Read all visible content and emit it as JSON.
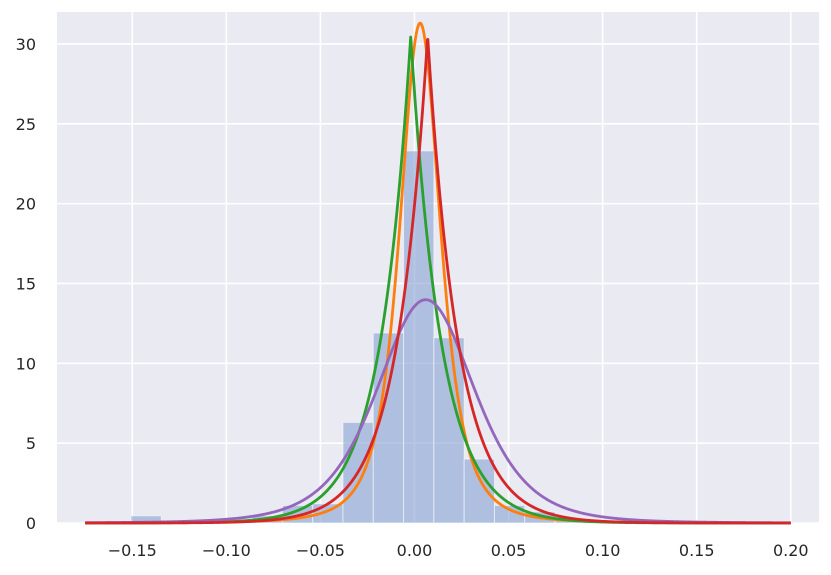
{
  "chart_data": {
    "type": "bar",
    "title": "",
    "xlabel": "",
    "ylabel": "",
    "xlim": [
      -0.19,
      0.215
    ],
    "ylim": [
      0,
      32
    ],
    "grid": true,
    "background_color": "#eaeaf2",
    "grid_color": "#ffffff",
    "x_ticks": [
      -0.15,
      -0.1,
      -0.05,
      0.0,
      0.05,
      0.1,
      0.15,
      0.2
    ],
    "x_tick_labels": [
      "−0.15",
      "−0.10",
      "−0.05",
      "0.00",
      "0.05",
      "0.10",
      "0.15",
      "0.20"
    ],
    "y_ticks": [
      0,
      5,
      10,
      15,
      20,
      25,
      30
    ],
    "y_tick_labels": [
      "0",
      "5",
      "10",
      "15",
      "20",
      "25",
      "30"
    ],
    "histogram": {
      "color": "#8fa8d4",
      "opacity": 0.65,
      "bin_edges": [
        -0.1507,
        -0.1346,
        -0.1185,
        -0.1024,
        -0.0863,
        -0.0702,
        -0.0541,
        -0.038,
        -0.0219,
        -0.0058,
        0.0103,
        0.0264,
        0.0425,
        0.0586,
        0.0747,
        0.0908
      ],
      "heights": [
        0.45,
        0.1,
        0.1,
        0.1,
        0.45,
        1.1,
        1.2,
        6.3,
        11.9,
        23.3,
        11.6,
        4.0,
        1.1,
        0.7,
        0.3
      ]
    },
    "curves": [
      {
        "color": "#ff7f0e",
        "kind": "t",
        "loc": 0.003,
        "scale": 0.0116,
        "df": 2.6,
        "range": [
          -0.175,
          0.2
        ]
      },
      {
        "color": "#2ca02c",
        "kind": "laplace",
        "loc": -0.002,
        "scale": 0.0164,
        "range": [
          -0.175,
          0.2
        ]
      },
      {
        "color": "#9467bd",
        "kind": "t",
        "loc": 0.006,
        "scale": 0.027,
        "df": 4.5,
        "range": [
          -0.175,
          0.2
        ]
      },
      {
        "color": "#d62728",
        "kind": "laplace",
        "loc": 0.007,
        "scale": 0.0164,
        "range": [
          -0.175,
          0.2
        ]
      }
    ]
  }
}
